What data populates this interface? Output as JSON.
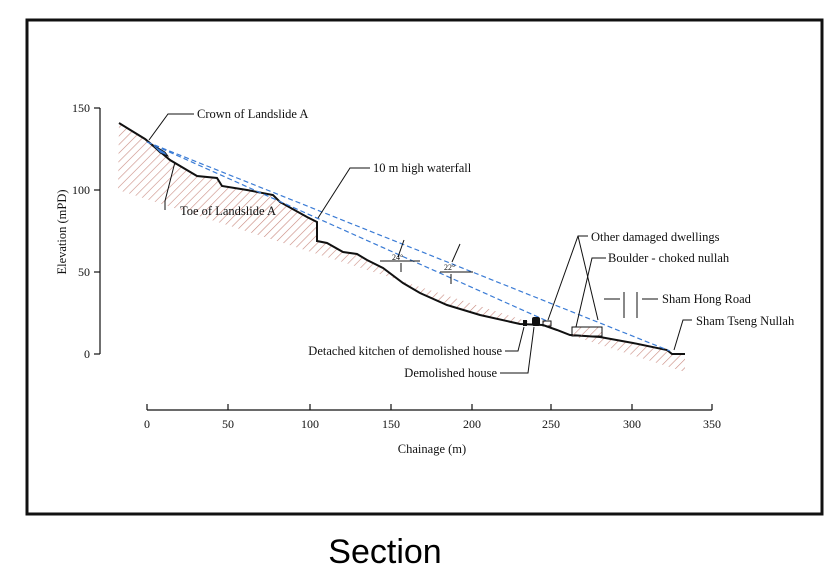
{
  "diagram": {
    "x_axis": {
      "label": "Chainage (m)",
      "ticks": [
        "0",
        "50",
        "100",
        "150",
        "200",
        "250",
        "300",
        "350"
      ]
    },
    "y_axis": {
      "label": "Elevation (mPD)",
      "ticks": [
        "0",
        "50",
        "100",
        "150"
      ]
    },
    "annotations": {
      "crown": "Crown of Landslide A",
      "toe": "Toe of Landslide A",
      "waterfall": "10 m high waterfall",
      "angle1": "24°",
      "angle2": "22°",
      "other_dwellings": "Other damaged dwellings",
      "boulder": "Boulder - choked nullah",
      "road": "Sham Hong Road",
      "nullah": "Sham Tseng Nullah",
      "kitchen": "Detached kitchen of demolished house",
      "house": "Demolished house"
    },
    "colors": {
      "ground_line": "#111111",
      "hatch": "#c98a80",
      "travel_lines": "#3a7bd5",
      "debris": "#3a7bd5"
    }
  },
  "caption": "Section"
}
